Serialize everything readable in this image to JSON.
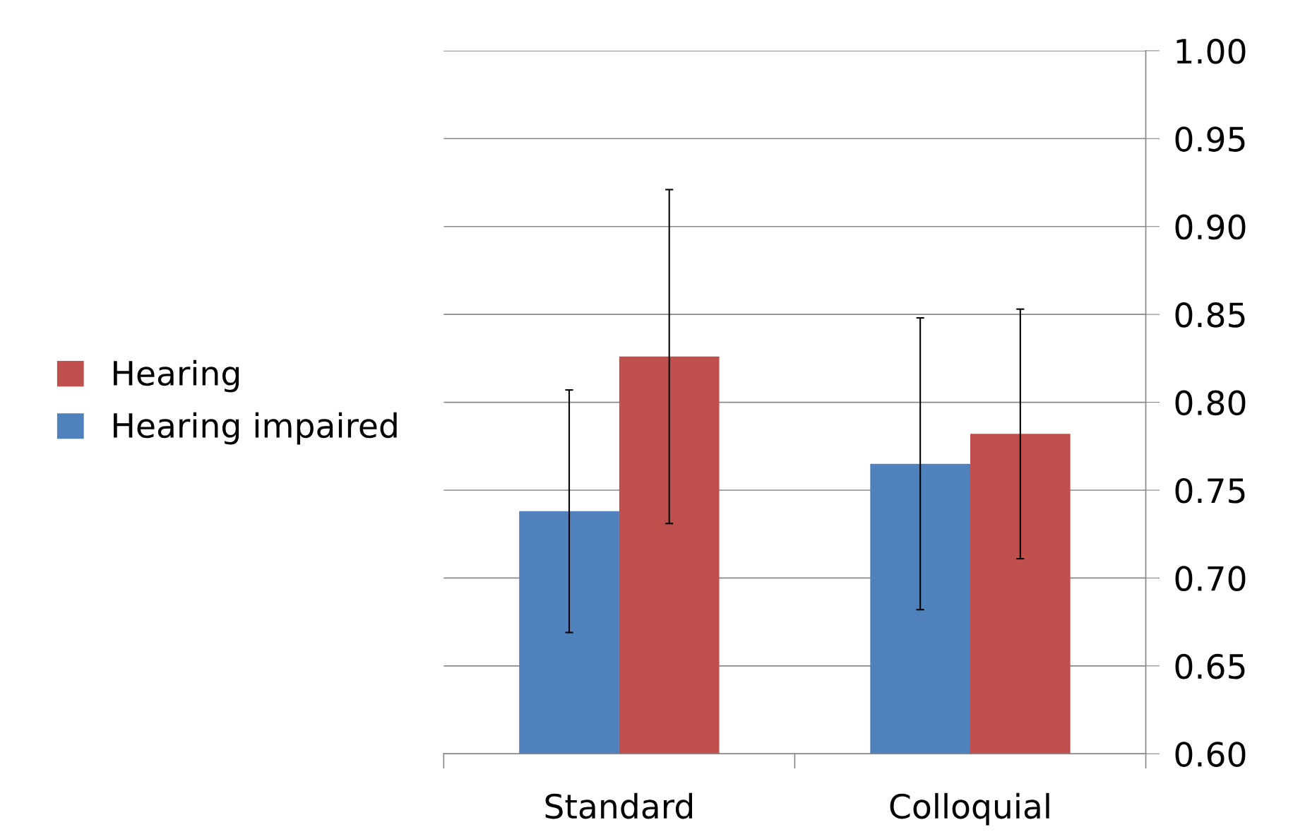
{
  "chart_data": {
    "type": "bar",
    "categories": [
      "Standard",
      "Colloquial"
    ],
    "series": [
      {
        "name": "Hearing impaired",
        "color": "#4f81bd",
        "values": [
          0.738,
          0.765
        ],
        "errors": [
          0.069,
          0.083
        ]
      },
      {
        "name": "Hearing",
        "color": "#c0504d",
        "values": [
          0.826,
          0.782
        ],
        "errors": [
          0.095,
          0.071
        ]
      }
    ],
    "ylim": [
      0.6,
      1.0
    ],
    "yticks": [
      {
        "value": 0.6,
        "label": "0.60"
      },
      0.65,
      {
        "value": 0.7,
        "label": "0.70"
      },
      0.75,
      {
        "value": 0.8,
        "label": "0.80"
      },
      0.85,
      {
        "value": 0.9,
        "label": "0.90"
      },
      0.95,
      {
        "value": 1.0,
        "label": "1.00"
      }
    ],
    "grid": "y",
    "legend": "left"
  }
}
